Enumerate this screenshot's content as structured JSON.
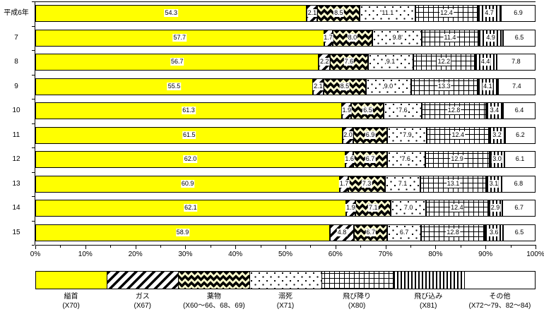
{
  "colors": {
    "bar_yellow": "#ffff00",
    "drugs_background": "#ffffcc",
    "pattern_ink": "#000000",
    "label_background": "#ffffff"
  },
  "chart_data": {
    "type": "bar",
    "stacked": true,
    "orientation": "horizontal",
    "unit": "%",
    "grid": false,
    "legend_position": "bottom",
    "categories": [
      "平成6年",
      "7",
      "8",
      "9",
      "10",
      "11",
      "12",
      "13",
      "14",
      "15"
    ],
    "series": [
      {
        "key": "hanging",
        "name": "縊首",
        "code": "(X70)",
        "pattern": "solid-yellow",
        "values": [
          "54.3",
          "57.7",
          "56.7",
          "55.5",
          "61.3",
          "61.5",
          "62.0",
          "60.9",
          "62.1",
          "58.9"
        ]
      },
      {
        "key": "gas",
        "name": "ガス",
        "code": "(X67)",
        "pattern": "diagonal-stripes",
        "values": [
          "2.1",
          "1.7",
          "2.2",
          "2.1",
          "1.9",
          "2.0",
          "1.6",
          "1.7",
          "1.9",
          "4.8"
        ]
      },
      {
        "key": "drugs",
        "name": "薬物",
        "code": "(X60～66、68、69)",
        "pattern": "black-diamonds-on-cream",
        "values": [
          "8.5",
          "8.0",
          "7.6",
          "8.5",
          "6.5",
          "6.9",
          "6.7",
          "7.3",
          "7.1",
          "6.7"
        ]
      },
      {
        "key": "drowning",
        "name": "溺死",
        "code": "(X71)",
        "pattern": "sparse-dots",
        "values": [
          "11.1",
          "9.8",
          "9.1",
          "9.0",
          "7.6",
          "7.9",
          "7.6",
          "7.1",
          "7.0",
          "6.7"
        ]
      },
      {
        "key": "fall",
        "name": "飛び降り",
        "code": "(X80)",
        "pattern": "grid",
        "values": [
          "12.4",
          "11.4",
          "12.2",
          "13.3",
          "12.8",
          "12.4",
          "12.9",
          "13.1",
          "12.4",
          "12.8"
        ]
      },
      {
        "key": "plunge",
        "name": "飛び込み",
        "code": "(X81)",
        "pattern": "vertical-stripes",
        "values": [
          "4.7",
          "4.9",
          "4.4",
          "4.1",
          "3.4",
          "3.2",
          "3.0",
          "3.1",
          "2.9",
          "3.6"
        ]
      },
      {
        "key": "other",
        "name": "その他",
        "code": "(X72～79、82～84)",
        "pattern": "plain-white",
        "values": [
          "6.9",
          "6.5",
          "7.8",
          "7.4",
          "6.4",
          "6.2",
          "6.1",
          "6.8",
          "6.7",
          "6.5"
        ]
      }
    ],
    "x_axis": {
      "min": 0,
      "max": 100,
      "major_tick_labels": [
        "0%",
        "10%",
        "20%",
        "30%",
        "40%",
        "50%",
        "60%",
        "70%",
        "80%",
        "90%",
        "100%"
      ],
      "minor_tick_step": 5
    }
  }
}
